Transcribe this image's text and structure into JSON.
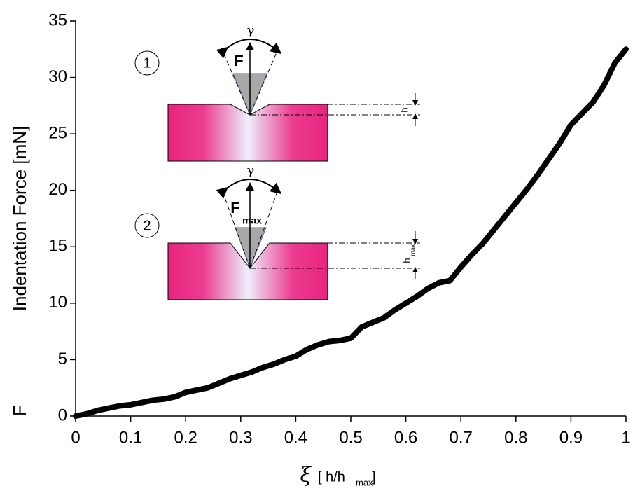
{
  "chart_data": {
    "type": "line",
    "x_label": {
      "symbol": "ξ",
      "text": "[ h/h",
      "sub": "max",
      "close": "]"
    },
    "y_label": {
      "symbol": "F",
      "text": "Indentation Force [mN]"
    },
    "x": [
      0,
      0.02,
      0.04,
      0.06,
      0.08,
      0.1,
      0.12,
      0.14,
      0.16,
      0.18,
      0.2,
      0.22,
      0.24,
      0.26,
      0.28,
      0.3,
      0.32,
      0.34,
      0.36,
      0.38,
      0.4,
      0.42,
      0.44,
      0.46,
      0.48,
      0.5,
      0.52,
      0.54,
      0.56,
      0.58,
      0.6,
      0.62,
      0.64,
      0.66,
      0.68,
      0.7,
      0.72,
      0.74,
      0.76,
      0.78,
      0.8,
      0.82,
      0.84,
      0.86,
      0.88,
      0.9,
      0.92,
      0.94,
      0.96,
      0.98,
      1.0
    ],
    "series": [
      {
        "color": "#000000",
        "values": [
          0,
          0.2,
          0.5,
          0.7,
          0.9,
          1.0,
          1.2,
          1.4,
          1.5,
          1.7,
          2.1,
          2.3,
          2.5,
          2.9,
          3.3,
          3.6,
          3.9,
          4.3,
          4.6,
          5.0,
          5.3,
          5.9,
          6.3,
          6.6,
          6.7,
          6.9,
          7.9,
          8.3,
          8.7,
          9.4,
          10.0,
          10.6,
          11.3,
          11.8,
          12.0,
          13.2,
          14.3,
          15.3,
          16.5,
          17.7,
          18.9,
          20.1,
          21.4,
          22.8,
          24.2,
          25.8,
          26.8,
          27.8,
          29.3,
          31.3,
          32.5
        ]
      }
    ],
    "xlim": [
      0,
      1
    ],
    "xticks": [
      0,
      0.1,
      0.2,
      0.3,
      0.4,
      0.5,
      0.6,
      0.7,
      0.8,
      0.9,
      1
    ],
    "ylim": [
      0,
      35
    ],
    "yticks": [
      0,
      5,
      10,
      15,
      20,
      25,
      30,
      35
    ],
    "inset": {
      "steps": [
        "1",
        "2"
      ],
      "angle": "γ",
      "force": "F",
      "force_sub": "max",
      "depth": "h",
      "depth_sub": "max"
    }
  }
}
